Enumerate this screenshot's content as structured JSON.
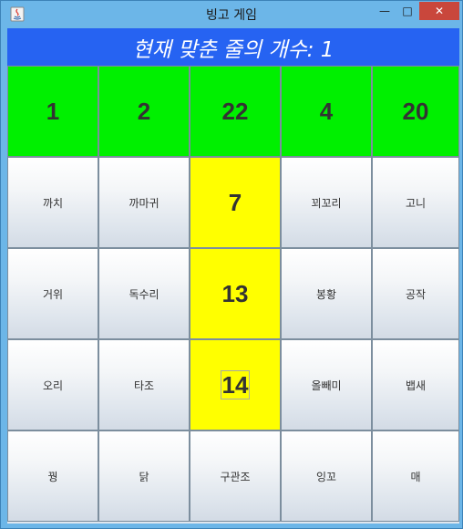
{
  "window": {
    "title": "빙고 게임",
    "minimize_glyph": "—",
    "maximize_glyph": "□",
    "close_glyph": "✕"
  },
  "header": {
    "text": "현재 맞춘 줄의 개수: 1"
  },
  "grid": {
    "rows": [
      [
        "1",
        "2",
        "22",
        "4",
        "20"
      ],
      [
        "까치",
        "까마귀",
        "7",
        "꾀꼬리",
        "고니"
      ],
      [
        "거위",
        "독수리",
        "13",
        "봉황",
        "공작"
      ],
      [
        "오리",
        "타조",
        "14",
        "올빼미",
        "뱁새"
      ],
      [
        "꿩",
        "닭",
        "구관조",
        "잉꼬",
        "매"
      ]
    ]
  },
  "colors": {
    "header_blue": "#2663f2",
    "row_marked_green": "#00f000",
    "cell_marked_yellow": "#ffff00",
    "close_red": "#c9473c"
  }
}
